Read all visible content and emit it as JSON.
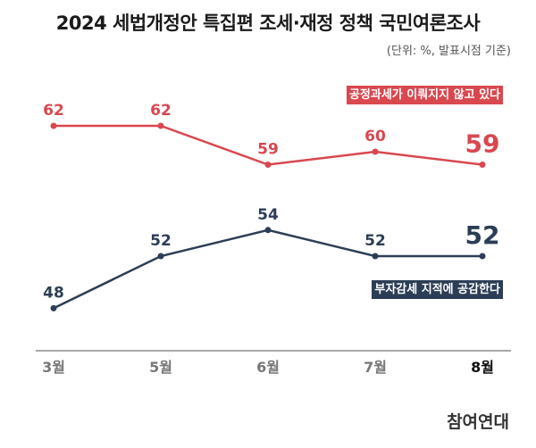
{
  "header": {
    "title": "2024 세법개정안 특집편 조세·재정 정책 국민여론조사",
    "subtitle": "(단위: %, 발표시점 기준)"
  },
  "logo": "참여연대",
  "chart_data": {
    "type": "line",
    "title": "2024 세법개정안 특집편 조세·재정 정책 국민여론조사",
    "subtitle": "(단위: %, 발표시점 기준)",
    "xlabel": "",
    "ylabel": "%",
    "categories": [
      "3월",
      "5월",
      "6월",
      "7월",
      "8월"
    ],
    "highlight_category": "8월",
    "grid": false,
    "series": [
      {
        "name": "공정과세가 이뤄지지 않고 있다",
        "color": "#d9474f",
        "values": [
          62,
          62,
          59,
          60,
          59
        ]
      },
      {
        "name": "부자감세 지적에 공감한다",
        "color": "#2c3e55",
        "values": [
          48,
          52,
          54,
          52,
          52
        ]
      }
    ]
  }
}
